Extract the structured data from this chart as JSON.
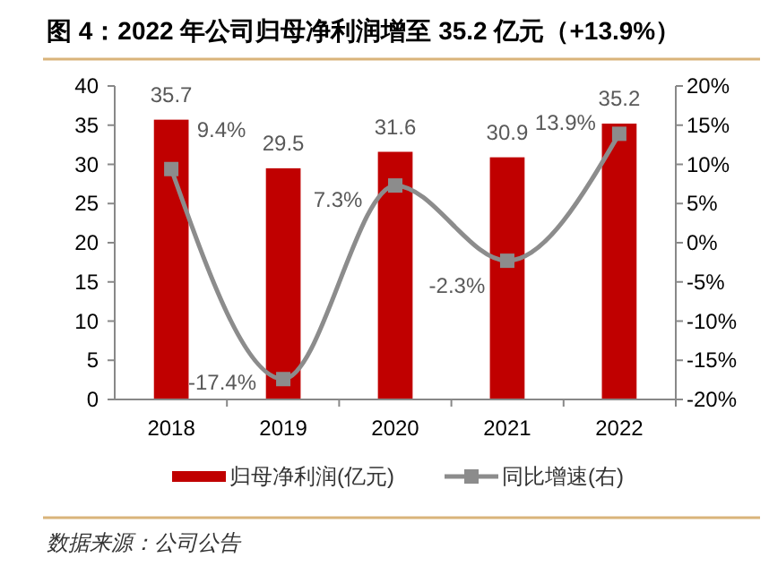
{
  "chart_data": {
    "type": "bar",
    "title": "图 4：2022 年公司归母净利润增至 35.2 亿元（+13.9%）",
    "categories": [
      "2018",
      "2019",
      "2020",
      "2021",
      "2022"
    ],
    "series": [
      {
        "name": "归母净利润(亿元)",
        "color": "#c00000",
        "values": [
          35.7,
          29.5,
          31.6,
          30.9,
          35.2
        ],
        "value_labels": [
          "35.7",
          "29.5",
          "31.6",
          "30.9",
          "35.2"
        ]
      },
      {
        "name": "同比增速(右)",
        "type": "line",
        "axis": "y2",
        "color": "#8c8c8c",
        "marker": "square",
        "values": [
          9.4,
          -17.4,
          7.3,
          -2.3,
          13.9
        ],
        "value_labels": [
          "9.4%",
          "-17.4%",
          "7.3%",
          "-2.3%",
          "13.9%"
        ]
      }
    ],
    "ylim": [
      0,
      40
    ],
    "yticks": [
      0,
      5,
      10,
      15,
      20,
      25,
      30,
      35,
      40
    ],
    "y2lim": [
      -20,
      20
    ],
    "y2ticks": [
      {
        "value": -20,
        "label": "-20%"
      },
      {
        "value": -15,
        "label": "-15%"
      },
      {
        "value": -10,
        "label": "-10%"
      },
      {
        "value": -5,
        "label": "-5%"
      },
      {
        "value": 0,
        "label": "0%"
      },
      {
        "value": 5,
        "label": "5%"
      },
      {
        "value": 10,
        "label": "10%"
      },
      {
        "value": 15,
        "label": "15%"
      },
      {
        "value": 20,
        "label": "20%"
      }
    ],
    "legend": "bottom",
    "grid": false,
    "annotations": [
      "数据来源：公司公告"
    ]
  }
}
